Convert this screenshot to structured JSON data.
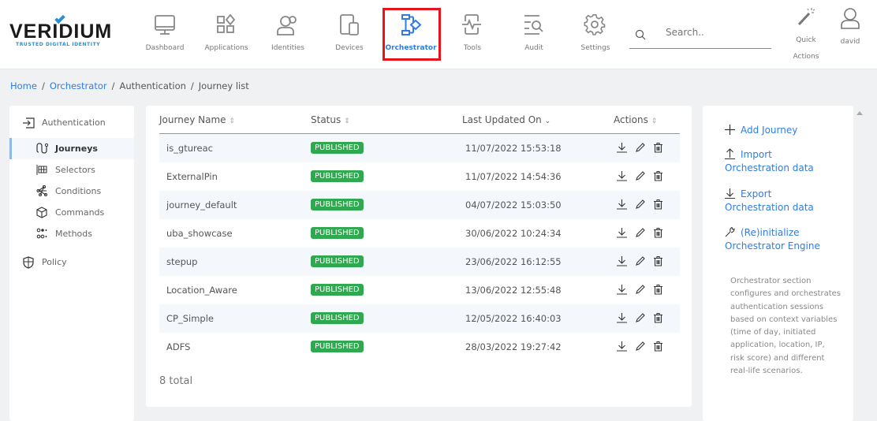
{
  "brand": {
    "name": "VERIDIUM",
    "tagline": "TRUSTED DIGITAL IDENTITY",
    "accent": "#2f7de1"
  },
  "nav": [
    {
      "label": "Dashboard",
      "icon": "monitor-icon"
    },
    {
      "label": "Applications",
      "icon": "apps-icon"
    },
    {
      "label": "Identities",
      "icon": "users-icon"
    },
    {
      "label": "Devices",
      "icon": "devices-icon"
    },
    {
      "label": "Orchestrator",
      "icon": "flow-icon",
      "active": true
    },
    {
      "label": "Tools",
      "icon": "pulse-icon"
    },
    {
      "label": "Audit",
      "icon": "list-search-icon"
    },
    {
      "label": "Settings",
      "icon": "gear-icon"
    }
  ],
  "search": {
    "placeholder": "Search.."
  },
  "quick_actions": {
    "line1": "Quick",
    "line2": "Actions"
  },
  "user": {
    "name": "david"
  },
  "breadcrumb": [
    "Home",
    "Orchestrator",
    "Authentication",
    "Journey list"
  ],
  "sidebar": {
    "section": "Authentication",
    "items": [
      {
        "label": "Journeys",
        "active": true
      },
      {
        "label": "Selectors"
      },
      {
        "label": "Conditions"
      },
      {
        "label": "Commands"
      },
      {
        "label": "Methods"
      }
    ],
    "policy": "Policy"
  },
  "table": {
    "columns": [
      "Journey Name",
      "Status",
      "Last Updated On",
      "Actions"
    ],
    "rows": [
      {
        "name": "is_gtureac",
        "status": "PUBLISHED",
        "updated": "11/07/2022 15:53:18"
      },
      {
        "name": "ExternalPin",
        "status": "PUBLISHED",
        "updated": "11/07/2022 14:54:36"
      },
      {
        "name": "journey_default",
        "status": "PUBLISHED",
        "updated": "04/07/2022 15:03:50"
      },
      {
        "name": "uba_showcase",
        "status": "PUBLISHED",
        "updated": "30/06/2022 10:24:34"
      },
      {
        "name": "stepup",
        "status": "PUBLISHED",
        "updated": "23/06/2022 16:12:55"
      },
      {
        "name": "Location_Aware",
        "status": "PUBLISHED",
        "updated": "13/06/2022 12:55:48"
      },
      {
        "name": "CP_Simple",
        "status": "PUBLISHED",
        "updated": "12/05/2022 16:40:03"
      },
      {
        "name": "ADFS",
        "status": "PUBLISHED",
        "updated": "28/03/2022 19:27:42"
      }
    ],
    "total": "8 total",
    "status_color": "#2fa84f"
  },
  "actions_panel": {
    "add": "Add Journey",
    "import": [
      "Import",
      "Orchestration data"
    ],
    "export": [
      "Export",
      "Orchestration data"
    ],
    "reinit": [
      "(Re)initialize",
      "Orchestrator Engine"
    ],
    "description": "Orchestrator section configures and orchestrates authentication sessions based on context variables (time of day, initiated application, location, IP, risk score) and different real-life scenarios."
  }
}
